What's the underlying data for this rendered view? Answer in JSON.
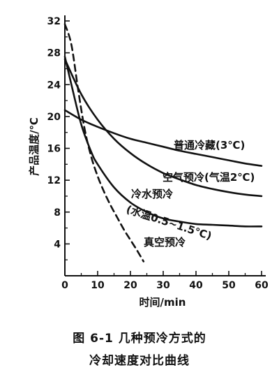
{
  "chart_data": {
    "type": "line",
    "title": "",
    "xlabel": "时间/min",
    "ylabel": "产品温度/℃",
    "xlim": [
      0,
      60
    ],
    "ylim": [
      0,
      32
    ],
    "xticks": [
      0,
      10,
      20,
      30,
      40,
      50,
      60
    ],
    "yticks": [
      4,
      8,
      12,
      16,
      20,
      24,
      28,
      32
    ],
    "xtick_labels": [
      "0",
      "10",
      "20",
      "30",
      "40",
      "50",
      "60"
    ],
    "ytick_labels": [
      "4",
      "8",
      "12",
      "16",
      "20",
      "24",
      "28",
      "32"
    ],
    "grid": false,
    "legend": "none",
    "series": [
      {
        "name": "普通冷藏(3℃)",
        "dash": false,
        "x": [
          0,
          5,
          10,
          15,
          20,
          25,
          30,
          35,
          40,
          45,
          50,
          55,
          60
        ],
        "y": [
          20.8,
          19.6,
          18.7,
          17.9,
          17.2,
          16.7,
          16.2,
          15.7,
          15.3,
          14.9,
          14.5,
          14.1,
          13.8
        ]
      },
      {
        "name": "空气预冷(气温2℃)",
        "dash": false,
        "x": [
          0,
          5,
          10,
          15,
          20,
          25,
          30,
          35,
          40,
          45,
          50,
          55,
          60
        ],
        "y": [
          27.2,
          22.8,
          19.6,
          17.2,
          15.4,
          14.0,
          12.9,
          12.1,
          11.4,
          10.9,
          10.5,
          10.2,
          10.0
        ]
      },
      {
        "name": "冷水预冷(水温0.5~1.5℃)",
        "dash": false,
        "x": [
          0,
          2,
          5,
          8,
          10,
          15,
          20,
          25,
          30,
          35,
          40,
          45,
          50,
          55,
          60
        ],
        "y": [
          27.5,
          24.0,
          19.0,
          15.6,
          14.0,
          11.1,
          9.2,
          8.0,
          7.2,
          6.8,
          6.5,
          6.4,
          6.3,
          6.2,
          6.2
        ]
      },
      {
        "name": "真空预冷",
        "dash": true,
        "x": [
          0,
          2,
          4,
          6,
          8,
          10,
          12,
          14,
          16,
          18,
          20,
          22,
          24
        ],
        "y": [
          31.6,
          29.0,
          23.5,
          18.5,
          15.0,
          12.5,
          10.5,
          8.8,
          7.3,
          5.8,
          4.5,
          3.2,
          1.8
        ]
      }
    ],
    "annotations": [
      {
        "text": "普通冷藏(3℃)"
      },
      {
        "text": "空气预冷(气温2℃)"
      },
      {
        "text": "冷水预冷"
      },
      {
        "text": "(水温0.5~1.5℃)"
      },
      {
        "text": "真空预冷"
      }
    ]
  },
  "caption": {
    "line1": "图 6-1   几种预冷方式的",
    "line2": "冷却速度对比曲线"
  }
}
